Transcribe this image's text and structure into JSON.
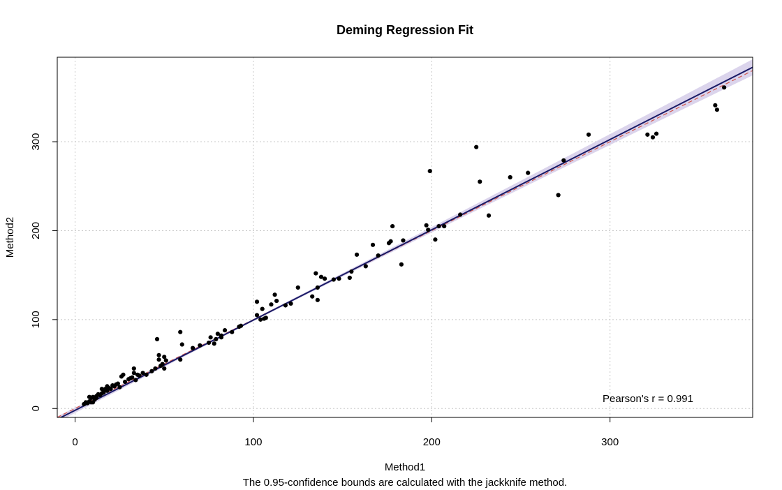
{
  "chart_data": {
    "type": "scatter",
    "title": "Deming Regression Fit",
    "xlabel": "Method1",
    "ylabel": "Method2",
    "subtitle": "The 0.95-confidence bounds are calculated with the jackknife method.",
    "annotation": "Pearson's r = 0.991",
    "xlim": [
      -10,
      380
    ],
    "ylim": [
      -10,
      395
    ],
    "xticks": [
      0,
      100,
      200,
      300
    ],
    "yticks": [
      0,
      100,
      200,
      300
    ],
    "xtick_labels": [
      "0",
      "100",
      "200",
      "300"
    ],
    "ytick_labels": [
      "0",
      "100",
      "200",
      "300"
    ],
    "grid": true,
    "legend": "none",
    "fit": {
      "intercept": -2.0,
      "slope": 1.015
    },
    "identity_line": {
      "intercept": 0,
      "slope": 1
    },
    "confidence_band_halfwidth_at_max": 9,
    "colors": {
      "points": "#000000",
      "fit_line": "#1a1a66",
      "identity_line": "#d2554b",
      "band": "#cfc6e6",
      "grid": "#c8c8c8"
    },
    "series": [
      {
        "x": [
          5,
          6,
          7,
          8,
          8,
          9,
          9,
          10,
          10,
          11,
          12,
          12,
          13,
          14,
          15,
          15,
          16,
          16,
          17,
          18,
          18,
          19,
          20,
          21,
          22,
          23,
          24,
          25,
          26,
          27,
          28,
          30,
          31,
          32,
          33,
          33,
          34,
          35,
          36,
          38,
          40,
          43,
          45,
          46,
          47,
          47,
          48,
          49,
          50,
          50,
          51,
          59,
          59,
          60,
          66,
          70,
          75,
          76,
          78,
          79,
          80,
          82,
          82,
          84,
          88,
          92,
          93,
          102,
          102,
          104,
          105,
          106,
          107,
          110,
          112,
          113,
          118,
          121,
          125,
          133,
          135,
          136,
          136,
          138,
          140,
          145,
          148,
          154,
          155,
          158,
          163,
          167,
          170,
          176,
          177,
          178,
          183,
          184,
          197,
          198,
          199,
          202,
          204,
          207,
          216,
          225,
          227,
          232,
          244,
          254,
          271,
          274,
          288,
          321,
          324,
          326,
          359,
          360,
          364
        ],
        "y": [
          5,
          7,
          6,
          8,
          13,
          7,
          12,
          13,
          7,
          10,
          12,
          14,
          16,
          15,
          22,
          17,
          20,
          18,
          22,
          20,
          25,
          23,
          22,
          26,
          25,
          27,
          28,
          24,
          36,
          38,
          30,
          33,
          34,
          35,
          40,
          45,
          32,
          38,
          37,
          40,
          38,
          42,
          45,
          78,
          60,
          55,
          48,
          50,
          58,
          45,
          54,
          86,
          55,
          72,
          68,
          71,
          74,
          80,
          73,
          78,
          84,
          80,
          82,
          88,
          86,
          92,
          93,
          120,
          105,
          100,
          112,
          101,
          102,
          117,
          128,
          121,
          116,
          118,
          136,
          126,
          152,
          136,
          122,
          148,
          146,
          145,
          146,
          147,
          154,
          173,
          160,
          184,
          172,
          186,
          188,
          205,
          162,
          189,
          206,
          201,
          267,
          190,
          205,
          205,
          218,
          294,
          255,
          217,
          260,
          265,
          240,
          279,
          308,
          308,
          305,
          309,
          341,
          336,
          361
        ]
      }
    ]
  }
}
